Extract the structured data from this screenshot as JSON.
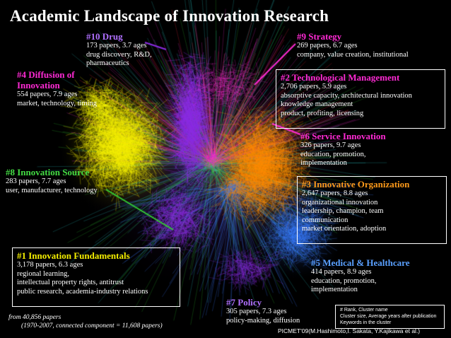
{
  "title": "Academic Landscape of Innovation Research",
  "colors": {
    "yellow": "#f5f000",
    "orange": "#ff8a00",
    "purple": "#8a2be2",
    "blue": "#3a7bff",
    "green": "#33cc33",
    "magenta": "#ff2ad4",
    "red": "#e8233a",
    "cyan": "#2fd6d6",
    "label_orange": "#ff9a1a",
    "label_blue": "#5aa0ff",
    "label_purple": "#b070ff",
    "label_green": "#44dd44"
  },
  "clusters": {
    "c1": {
      "name": "#1 Innovation Fundamentals",
      "papers": "3,178 papers, 6.3 ages",
      "keywords": [
        "regional learning,",
        "intellectual property rights, antitrust",
        "public research, academia-industry relations"
      ]
    },
    "c2": {
      "name": "#2 Technological Management",
      "papers": "2,706 papers, 5.9 ages",
      "keywords": [
        "absorptive capacity, architectural innovation",
        "knowledge management",
        "product, profiting, licensing"
      ]
    },
    "c3": {
      "name": "#3 Innovative Organization",
      "papers": "2,647 papers, 8.8 ages",
      "keywords": [
        "organizational innovation",
        "leadership, champion, team",
        "communication",
        "market orientation, adoption"
      ]
    },
    "c4": {
      "name_line1": "#4 Diffusion of",
      "name_line2": "Innovation",
      "papers": "554 papers, 7.9 ages",
      "keywords": [
        "market, technology, timing"
      ]
    },
    "c5": {
      "name": "#5 Medical & Healthcare",
      "papers": "414 papers, 8.9 ages",
      "keywords": [
        "education, promotion,",
        "implementation"
      ]
    },
    "c6": {
      "name": "#6 Service Innovation",
      "papers": "326 papers, 9.7 ages",
      "keywords": [
        "education, promotion,",
        "implementation"
      ]
    },
    "c7": {
      "name": "#7 Policy",
      "papers": "305 papers, 7.3 ages",
      "keywords": [
        "policy-making, diffusion"
      ]
    },
    "c8": {
      "name": "#8 Innovation Source",
      "papers": "283 papers, 7.7 ages",
      "keywords": [
        "user, manufacturer, technology"
      ]
    },
    "c9": {
      "name": "#9 Strategy",
      "papers": "269 papers, 6.7 ages",
      "keywords": [
        "company, value creation, institutional"
      ]
    },
    "c10": {
      "name": "#10 Drug",
      "papers": "173 papers, 3.7 ages",
      "keywords": [
        "drug discovery, R&D,",
        "pharmaceutics"
      ]
    }
  },
  "footnote": {
    "line1": "from 40,856 papers",
    "line2": "(1970-2007, connected component = 11,608 papers)"
  },
  "legend": {
    "line1": "# Rank,  Cluster name",
    "line2": "Cluster size, Average years after publication",
    "line3": "Keywords in the cluster"
  },
  "credit": "PICMET'09(M.Hashimoto,I. Sakata, Y.Kajikawa et al.)"
}
